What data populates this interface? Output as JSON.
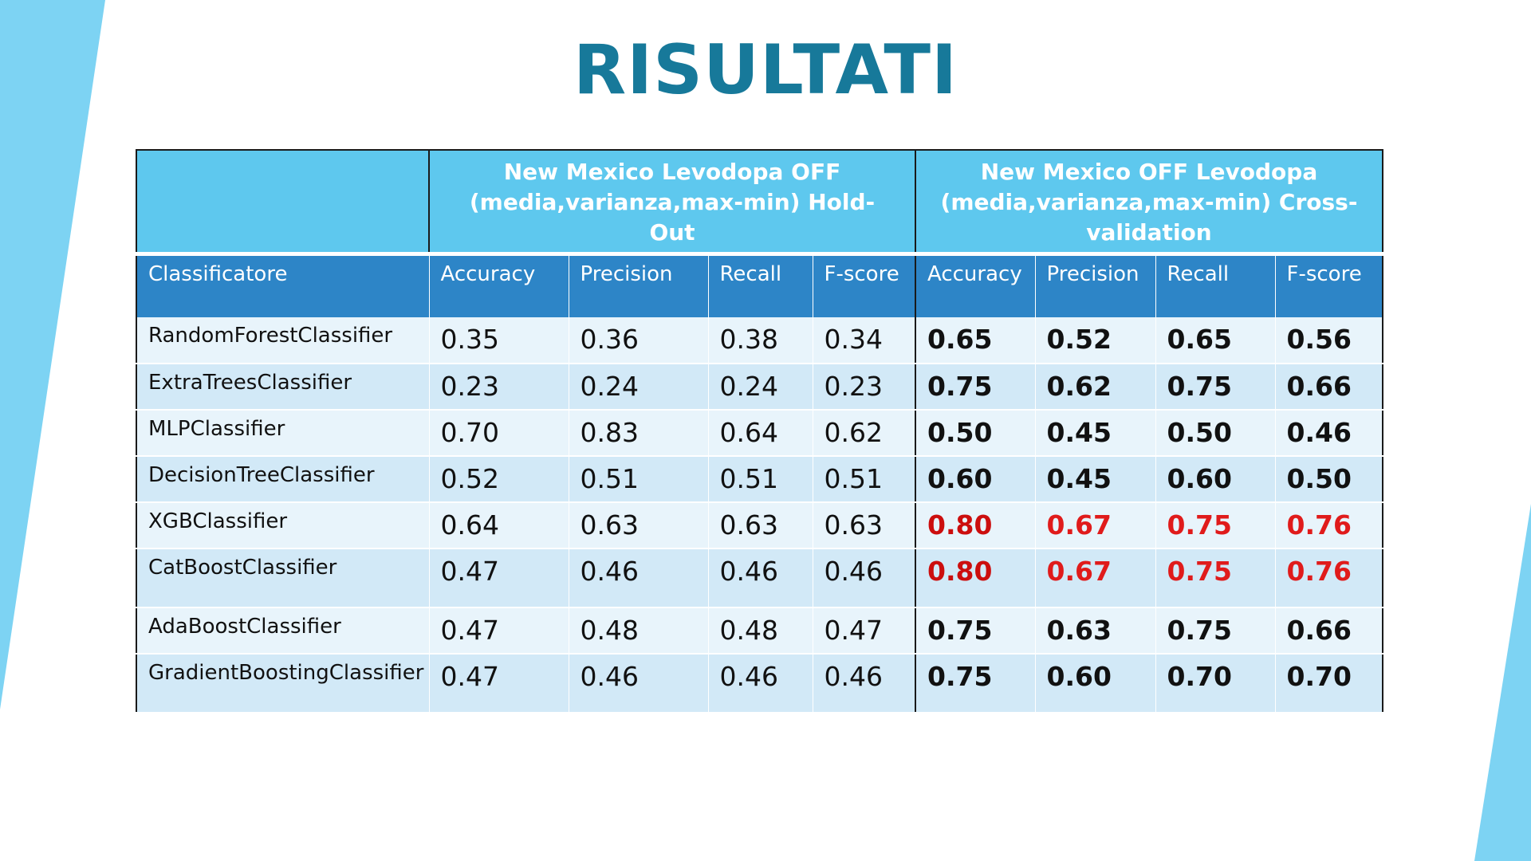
{
  "slide": {
    "title": "RISULTATI",
    "colors": {
      "title": "#17799a",
      "accent_stripe": "#7dd3f3",
      "group_header": "#5ec8ee",
      "column_header": "#2d85c7",
      "row_light": "#e8f4fb",
      "row_dark": "#d2e9f7",
      "highlight": "#e01b1b"
    }
  },
  "table": {
    "group_headers": [
      "",
      "New Mexico Levodopa OFF (media,varianza,max-min) Hold-Out",
      "New Mexico OFF Levodopa (media,varianza,max-min) Cross-validation"
    ],
    "columns": [
      "Classificatore",
      "Accuracy",
      "Precision",
      "Recall",
      "F-score",
      "Accuracy",
      "Precision",
      "Recall",
      "F-score"
    ],
    "rows": [
      {
        "name": "RandomForestClassifier",
        "holdout": [
          "0.35",
          "0.36",
          "0.38",
          "0.34"
        ],
        "cv": [
          "0.65",
          "0.52",
          "0.65",
          "0.56"
        ],
        "best": false
      },
      {
        "name": "ExtraTreesClassifier",
        "holdout": [
          "0.23",
          "0.24",
          "0.24",
          "0.23"
        ],
        "cv": [
          "0.75",
          "0.62",
          "0.75",
          "0.66"
        ],
        "best": false
      },
      {
        "name": "MLPClassifier",
        "holdout": [
          "0.70",
          "0.83",
          "0.64",
          "0.62"
        ],
        "cv": [
          "0.50",
          "0.45",
          "0.50",
          "0.46"
        ],
        "best": false
      },
      {
        "name": "DecisionTreeClassifier",
        "holdout": [
          "0.52",
          "0.51",
          "0.51",
          "0.51"
        ],
        "cv": [
          "0.60",
          "0.45",
          "0.60",
          "0.50"
        ],
        "best": false
      },
      {
        "name": "XGBClassifier",
        "holdout": [
          "0.64",
          "0.63",
          "0.63",
          "0.63"
        ],
        "cv": [
          "0.80",
          "0.67",
          "0.75",
          "0.76"
        ],
        "best": true
      },
      {
        "name": "CatBoostClassifier",
        "holdout": [
          "0.47",
          "0.46",
          "0.46",
          "0.46"
        ],
        "cv": [
          "0.80",
          "0.67",
          "0.75",
          "0.76"
        ],
        "best": true
      },
      {
        "name": "AdaBoostClassifier",
        "holdout": [
          "0.47",
          "0.48",
          "0.48",
          "0.47"
        ],
        "cv": [
          "0.75",
          "0.63",
          "0.75",
          "0.66"
        ],
        "best": false
      },
      {
        "name": "GradientBoostingClassifier",
        "holdout": [
          "0.47",
          "0.46",
          "0.46",
          "0.46"
        ],
        "cv": [
          "0.75",
          "0.60",
          "0.70",
          "0.70"
        ],
        "best": false
      }
    ]
  }
}
